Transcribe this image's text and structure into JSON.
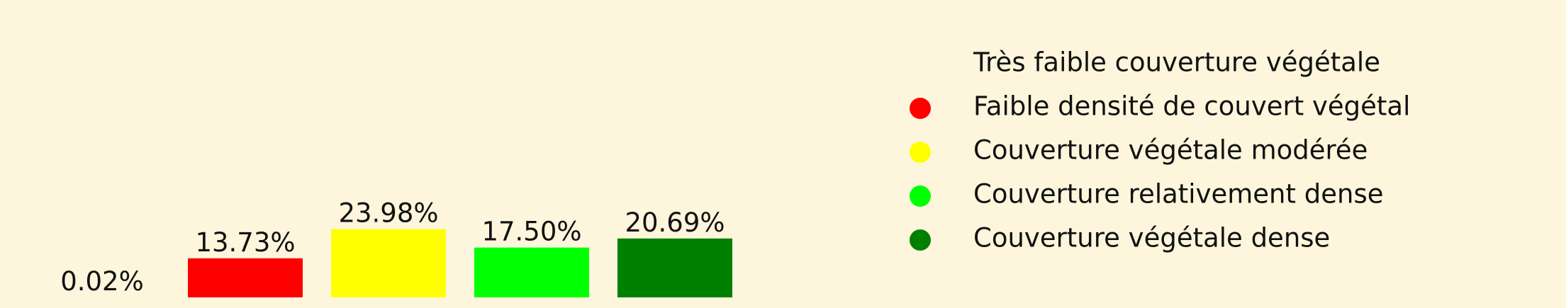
{
  "chart_data": {
    "type": "bar",
    "categories": [
      "Très faible couverture végétale",
      "Faible densité de couvert végétal",
      "Couverture végétale modérée",
      "Couverture relativement dense",
      "Couverture végétale dense"
    ],
    "values": [
      0.02,
      13.73,
      23.98,
      17.5,
      20.69
    ],
    "value_labels": [
      "0.02%",
      "13.73%",
      "23.98%",
      "17.50%",
      "20.69%"
    ],
    "colors": [
      "#fdf5dc",
      "#ff0000",
      "#ffff00",
      "#00ff00",
      "#008000"
    ],
    "ylim": [
      0,
      24
    ],
    "legend_position": "right",
    "grid": false,
    "axes_visible": false
  }
}
